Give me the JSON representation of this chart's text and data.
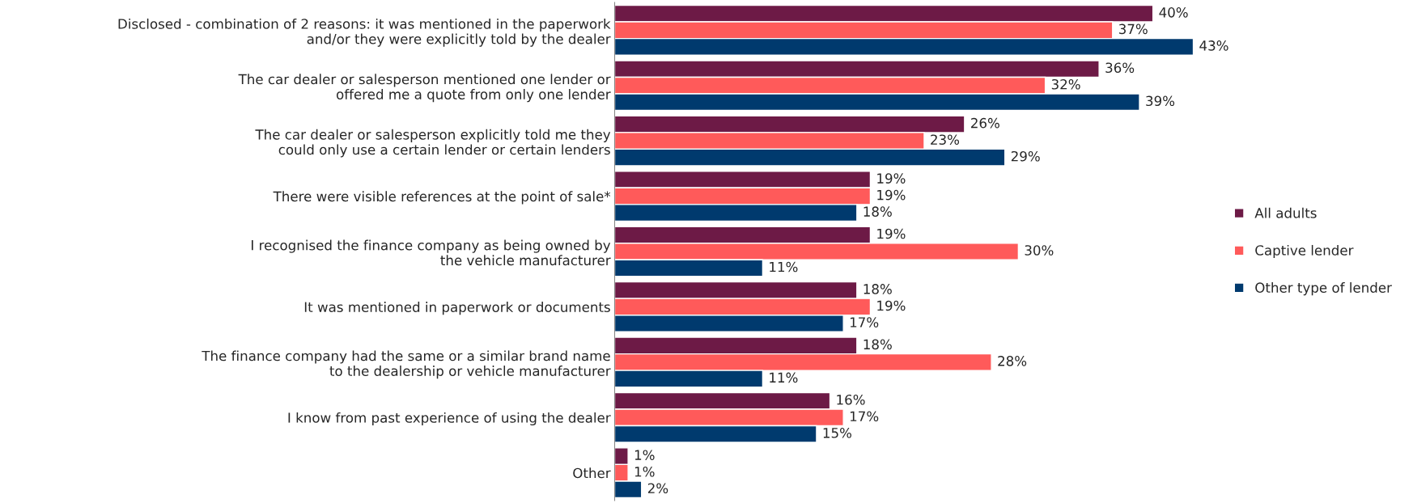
{
  "chart_data": {
    "type": "bar",
    "orientation": "horizontal",
    "categories": [
      "Disclosed - combination of 2 reasons: it was mentioned in the paperwork\nand/or they were explicitly told by the dealer",
      "The car dealer or salesperson mentioned one lender or\noffered me a quote from only one lender",
      "The car dealer or salesperson explicitly told me they\ncould only use a certain lender or certain lenders",
      "There were visible references at the point of sale*",
      "I recognised the finance company as being owned by\nthe vehicle manufacturer",
      "It was mentioned in paperwork or documents",
      "The finance company had the same or a similar brand name\nto the dealership or vehicle manufacturer",
      "I know from past experience of using the dealer",
      "Other"
    ],
    "series": [
      {
        "name": "All adults",
        "color": "#6d1a46",
        "values": [
          40,
          36,
          26,
          19,
          19,
          18,
          18,
          16,
          1
        ],
        "value_labels": [
          "40%",
          "36%",
          "26%",
          "19%",
          "19%",
          "18%",
          "18%",
          "16%",
          "1%"
        ]
      },
      {
        "name": "Captive lender",
        "color": "#ff5a5a",
        "values": [
          37,
          32,
          23,
          19,
          30,
          19,
          28,
          17,
          1
        ],
        "value_labels": [
          "37%",
          "32%",
          "23%",
          "19%",
          "30%",
          "19%",
          "28%",
          "17%",
          "1%"
        ]
      },
      {
        "name": "Other type of lender",
        "color": "#003a6e",
        "values": [
          43,
          39,
          29,
          18,
          11,
          17,
          11,
          15,
          2
        ],
        "value_labels": [
          "43%",
          "39%",
          "29%",
          "18%",
          "11%",
          "17%",
          "11%",
          "15%",
          "2%"
        ]
      }
    ],
    "tick_labels": "y",
    "legend": "right",
    "grid": false
  }
}
